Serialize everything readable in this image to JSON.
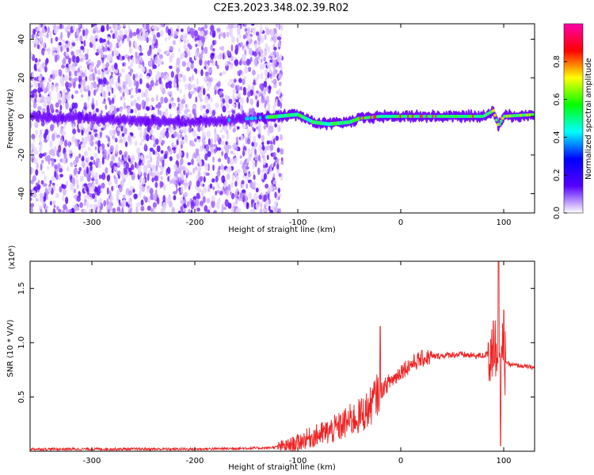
{
  "title": "C2E3.2023.348.02.39.R02",
  "chart_data": [
    {
      "type": "heatmap",
      "xlabel": "Height of straight line (km)",
      "ylabel": "Frequency (Hz)",
      "xlim": [
        -360,
        130
      ],
      "ylim": [
        -50,
        48
      ],
      "x_ticks": [
        -300,
        -200,
        -100,
        0,
        100
      ],
      "y_ticks": [
        -40,
        -20,
        0,
        20,
        40
      ],
      "colorbar": {
        "label": "Normalized spectral amplitude",
        "range": [
          0,
          1
        ],
        "ticks": [
          0.0,
          0.2,
          0.4,
          0.6,
          0.8
        ],
        "colormap": [
          "#ffffff",
          "#5500ff",
          "#0000ff",
          "#00ffff",
          "#00ff00",
          "#ffff00",
          "#ff0000",
          "#ff00aa"
        ]
      },
      "signal_track": [
        {
          "x": -360,
          "f": 0
        },
        {
          "x": -200,
          "f": -3
        },
        {
          "x": -170,
          "f": -2
        },
        {
          "x": -120,
          "f": 0
        },
        {
          "x": -100,
          "f": 1
        },
        {
          "x": -85,
          "f": -3
        },
        {
          "x": -70,
          "f": -4
        },
        {
          "x": -50,
          "f": -3
        },
        {
          "x": -40,
          "f": -1
        },
        {
          "x": -20,
          "f": 0
        },
        {
          "x": 0,
          "f": 0
        },
        {
          "x": 80,
          "f": 0
        },
        {
          "x": 90,
          "f": 3
        },
        {
          "x": 95,
          "f": -5
        },
        {
          "x": 100,
          "f": 0
        },
        {
          "x": 130,
          "f": 1
        }
      ],
      "noise_extent_x": [
        -360,
        -115
      ]
    },
    {
      "type": "line",
      "xlabel": "Height of straight line (km)",
      "ylabel": "SNR (10 * V/V)",
      "y_multiplier": "(x10⁴)",
      "xlim": [
        -360,
        130
      ],
      "ylim": [
        0,
        1.75
      ],
      "x_ticks": [
        -300,
        -200,
        -100,
        0,
        100
      ],
      "y_ticks": [
        0.5,
        1.0,
        1.5
      ],
      "series": [
        {
          "color": "#ee2222",
          "x": [
            -360,
            -300,
            -200,
            -130,
            -110,
            -100,
            -90,
            -80,
            -70,
            -60,
            -50,
            -40,
            -30,
            -25,
            -20,
            -15,
            -10,
            -5,
            0,
            10,
            20,
            30,
            40,
            50,
            60,
            70,
            80,
            85,
            90,
            95,
            100,
            105,
            130
          ],
          "y": [
            0.02,
            0.02,
            0.02,
            0.03,
            0.05,
            0.08,
            0.12,
            0.15,
            0.18,
            0.22,
            0.28,
            0.32,
            0.4,
            0.5,
            0.55,
            0.6,
            0.65,
            0.68,
            0.74,
            0.8,
            0.85,
            0.87,
            0.88,
            0.89,
            0.89,
            0.88,
            0.88,
            0.9,
            0.95,
            0.9,
            0.85,
            0.8,
            0.77
          ]
        }
      ],
      "spikes": [
        {
          "x": -20,
          "y": 1.15
        },
        {
          "x": 85,
          "y": 1.0
        },
        {
          "x": 90,
          "y": 1.2
        },
        {
          "x": 95,
          "y": 1.75
        },
        {
          "x": 97,
          "y": 0.05
        },
        {
          "x": 100,
          "y": 1.3
        }
      ]
    }
  ]
}
